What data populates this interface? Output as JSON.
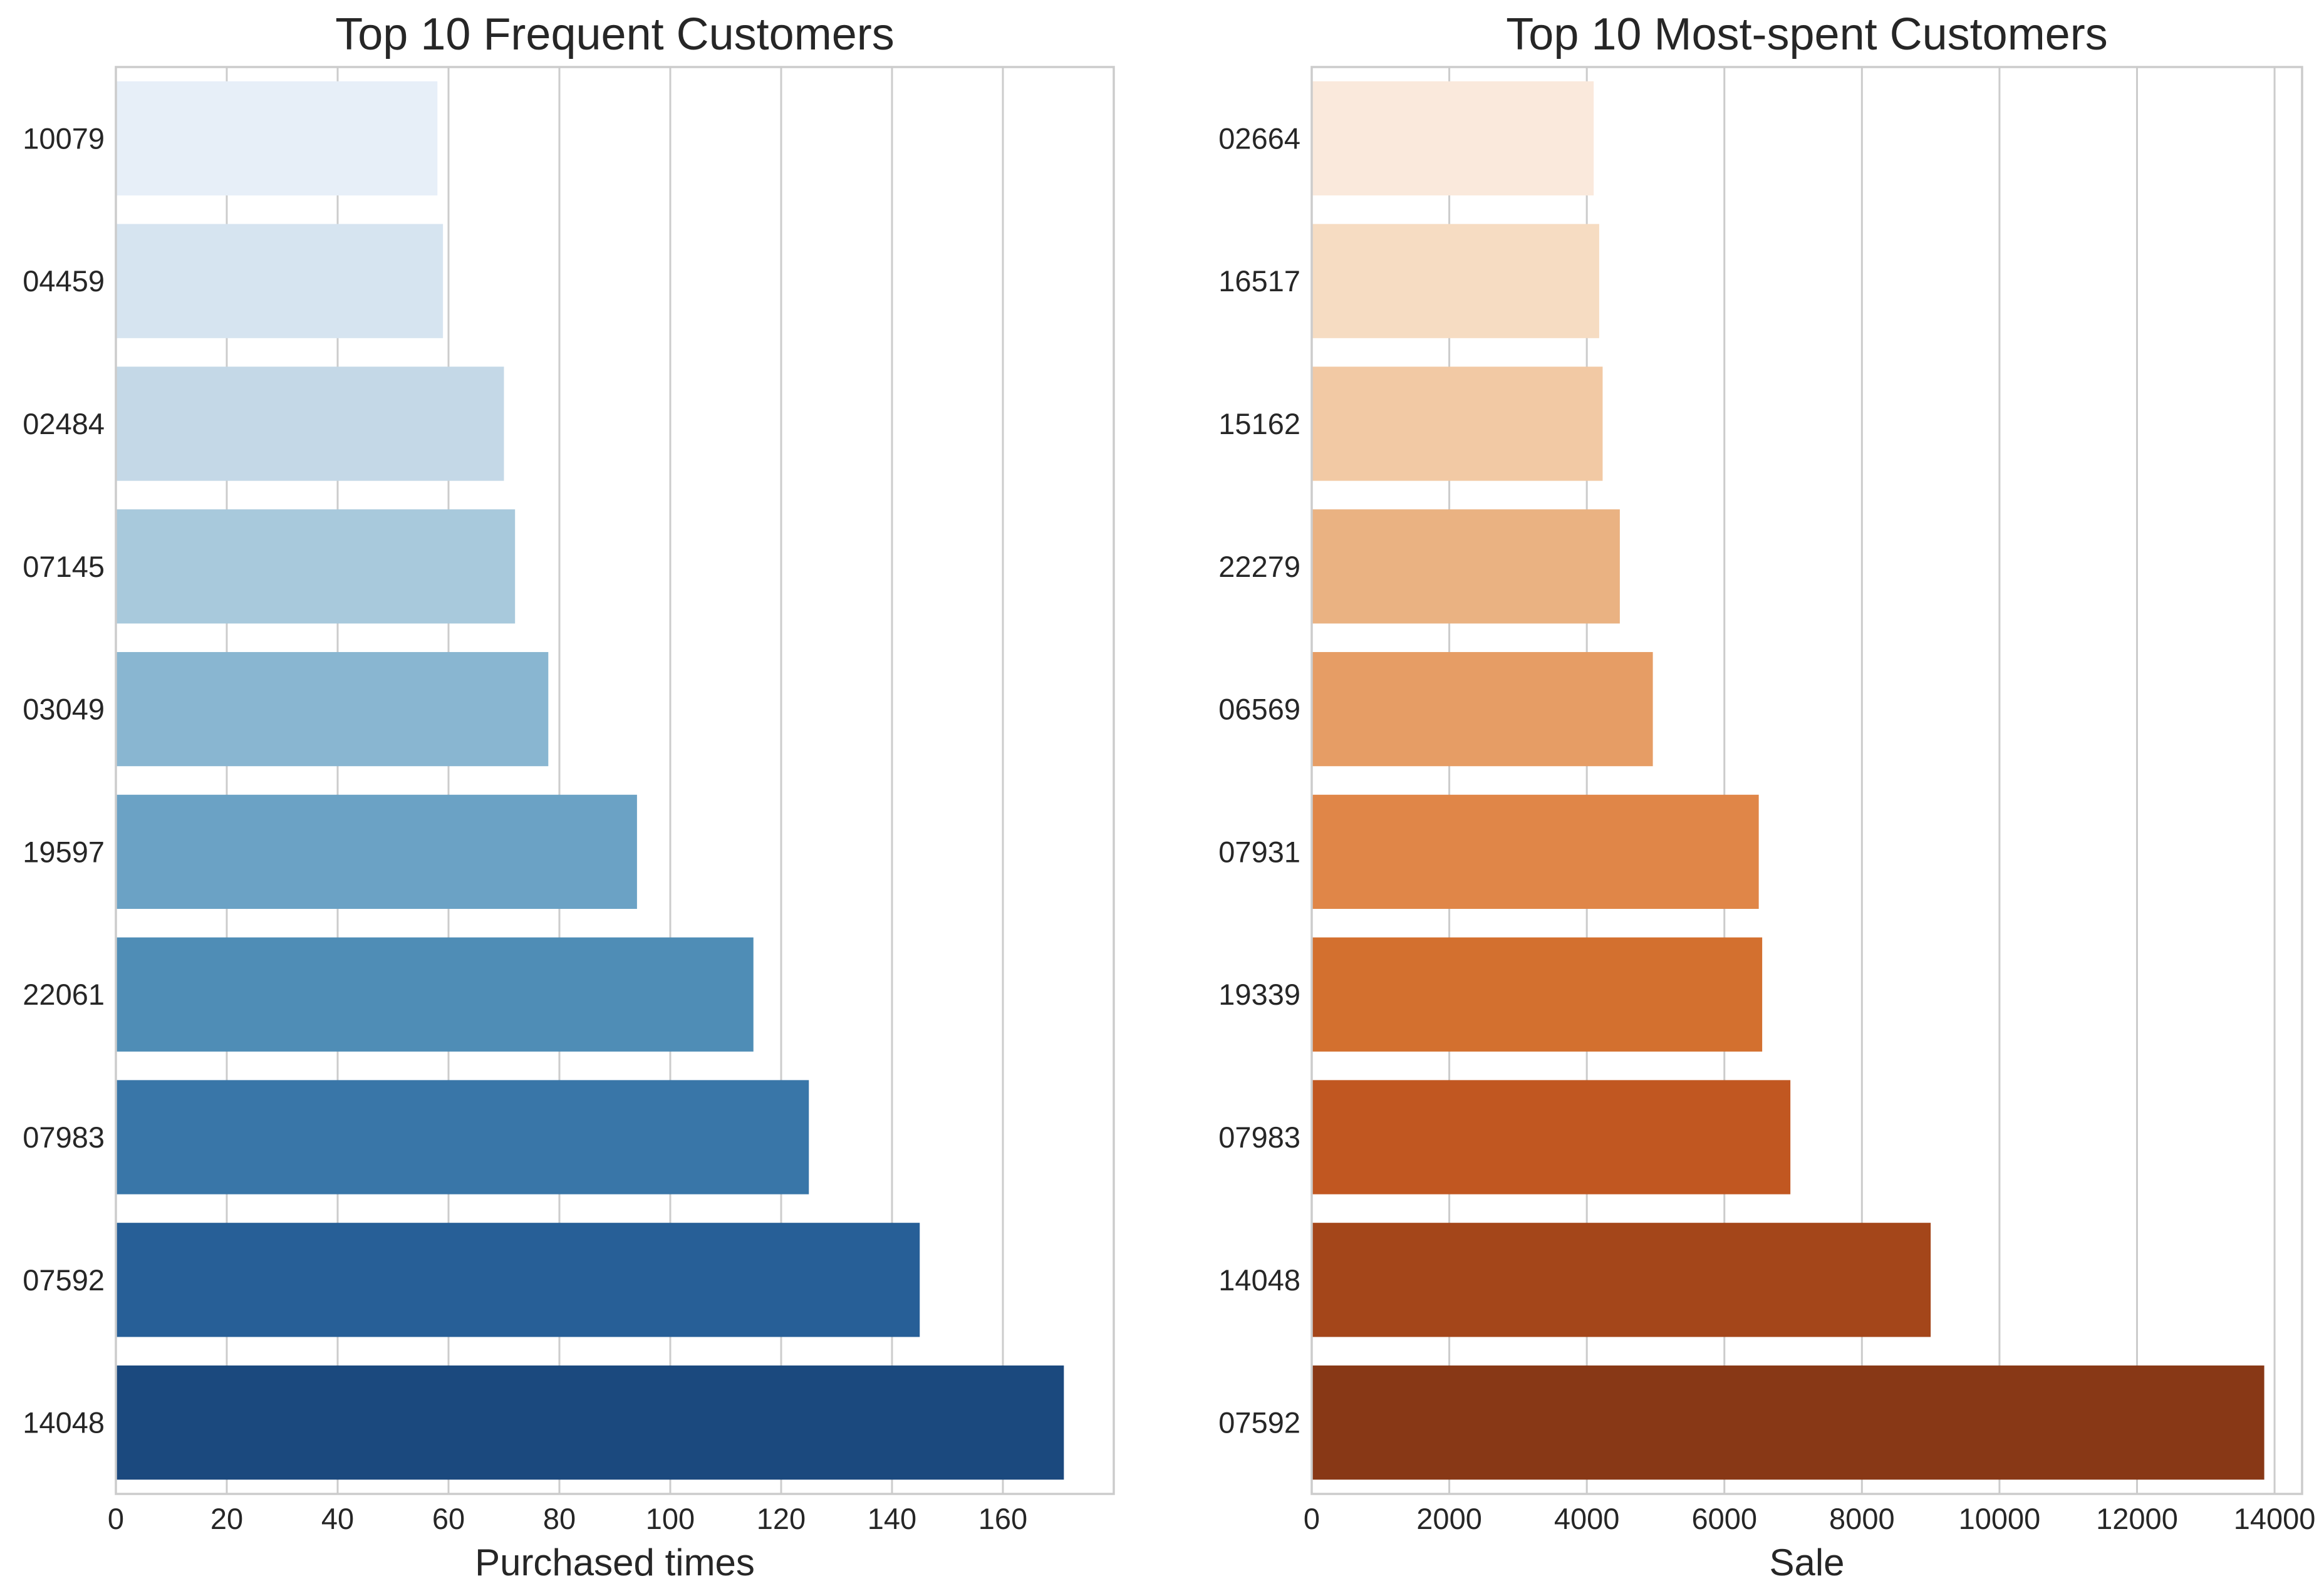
{
  "chart_data": [
    {
      "type": "bar",
      "orientation": "horizontal",
      "title": "Top 10 Frequent Customers",
      "xlabel": "Purchased times",
      "ylabel": "",
      "categories": [
        "10079",
        "04459",
        "02484",
        "07145",
        "03049",
        "19597",
        "22061",
        "07983",
        "07592",
        "14048"
      ],
      "values": [
        58,
        59,
        70,
        72,
        78,
        94,
        115,
        125,
        145,
        171
      ],
      "xlim": [
        0,
        180
      ],
      "xticks": [
        0,
        20,
        40,
        60,
        80,
        100,
        120,
        140,
        160
      ],
      "xtick_labels": [
        "0",
        "20",
        "40",
        "60",
        "80",
        "100",
        "120",
        "140",
        "160"
      ],
      "colors": [
        "#e7eff8",
        "#d6e4f0",
        "#c4d8e7",
        "#a8c9dc",
        "#89b6d1",
        "#6ba2c5",
        "#4f8db6",
        "#3976a8",
        "#275f97",
        "#1b497e"
      ],
      "grid": true,
      "palette": "Blues"
    },
    {
      "type": "bar",
      "orientation": "horizontal",
      "title": "Top 10 Most-spent Customers",
      "xlabel": "Sale",
      "ylabel": "",
      "categories": [
        "02664",
        "16517",
        "15162",
        "22279",
        "06569",
        "07931",
        "19339",
        "07983",
        "14048",
        "07592"
      ],
      "values": [
        4100,
        4180,
        4230,
        4480,
        4960,
        6500,
        6550,
        6960,
        9000,
        13850
      ],
      "xlim": [
        0,
        14400
      ],
      "xticks": [
        0,
        2000,
        4000,
        6000,
        8000,
        10000,
        12000,
        14000
      ],
      "xtick_labels": [
        "0",
        "2000",
        "4000",
        "6000",
        "8000",
        "10000",
        "12000",
        "14000"
      ],
      "colors": [
        "#fae9dc",
        "#f6dcc2",
        "#f2c9a4",
        "#eab282",
        "#e69d65",
        "#e08648",
        "#d3702f",
        "#c15721",
        "#a4461a",
        "#883816"
      ],
      "grid": true,
      "palette": "Oranges"
    }
  ]
}
